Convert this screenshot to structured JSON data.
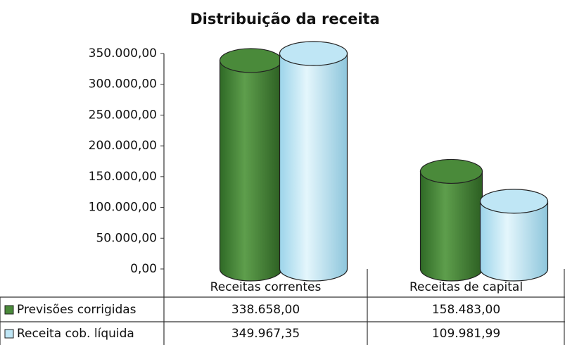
{
  "chart_data": {
    "type": "cylinder",
    "title": "Distribuição da receita",
    "categories": [
      "Receitas correntes",
      "Receitas de capital"
    ],
    "series": [
      {
        "name": "Previsões corrigidas",
        "color": "#4a8a3a",
        "values": [
          338658,
          158483
        ],
        "value_labels": [
          "338.658,00",
          "158.483,00"
        ]
      },
      {
        "name": "Receita cob. líquida",
        "color": "#bfe6f5",
        "values": [
          349967.35,
          109981.99
        ],
        "value_labels": [
          "349.967,35",
          "109.981,99"
        ]
      }
    ],
    "ylim": [
      0,
      350000
    ],
    "yticks": [
      {
        "value": 0,
        "label": "0,00"
      },
      {
        "value": 50000,
        "label": "50.000,00"
      },
      {
        "value": 100000,
        "label": "100.000,00"
      },
      {
        "value": 150000,
        "label": "150.000,00"
      },
      {
        "value": 200000,
        "label": "200.000,00"
      },
      {
        "value": 250000,
        "label": "250.000,00"
      },
      {
        "value": 300000,
        "label": "300.000,00"
      },
      {
        "value": 350000,
        "label": "350.000,00"
      }
    ]
  }
}
